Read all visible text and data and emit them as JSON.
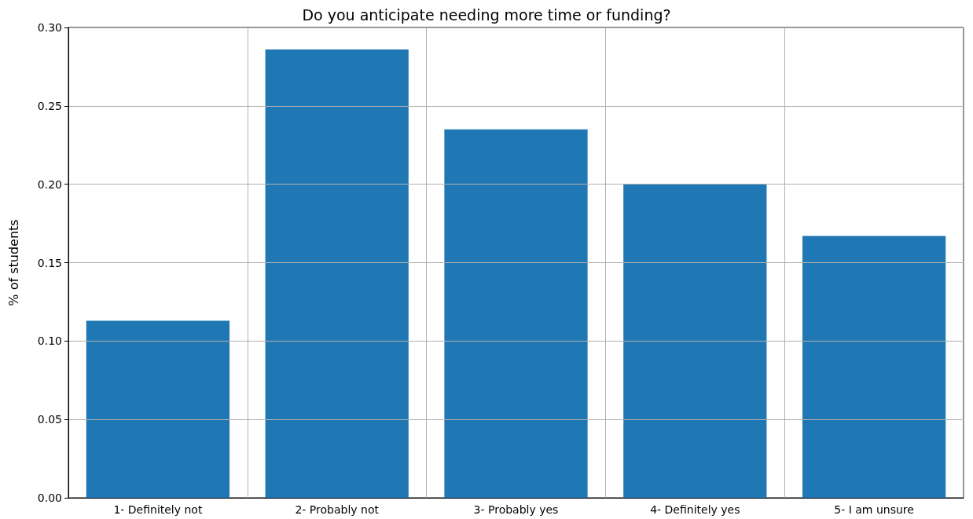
{
  "chart_data": {
    "type": "bar",
    "title": "Do you anticipate needing more time or funding?",
    "ylabel": "% of students",
    "categories": [
      "1- Definitely not",
      "2- Probably not",
      "3- Probably yes",
      "4- Definitely yes",
      "5- I am unsure"
    ],
    "values": [
      0.113,
      0.286,
      0.235,
      0.2,
      0.167
    ],
    "color": "#1f77b4",
    "ylim": [
      0,
      0.3
    ],
    "yticks": [
      {
        "value": 0,
        "label": "0.00"
      },
      0.05,
      {
        "value": 0.1,
        "label": "0.10"
      },
      0.15,
      {
        "value": 0.2,
        "label": "0.20"
      },
      0.25,
      {
        "value": 0.3,
        "label": "0.30"
      }
    ],
    "grid": true
  }
}
